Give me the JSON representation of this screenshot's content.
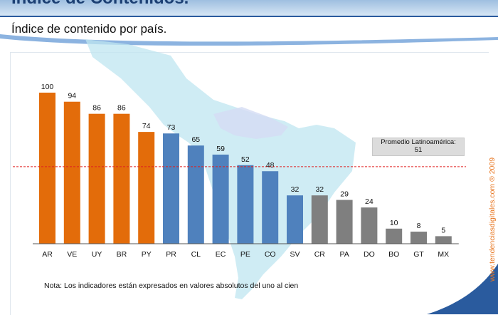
{
  "header": {
    "title": "Índice de Contenidos.",
    "subtitle": "Índice de contenido por país."
  },
  "note": "Nota: Los indicadores están expresados en valores absolutos del uno al cien",
  "copyright": "www.tendenciasdigitales.com ® 2009",
  "average": {
    "label": "Promedio Latinoamérica:",
    "value": "51"
  },
  "colors": {
    "orange": "#e36c0a",
    "blue": "#4f81bd",
    "gray": "#7f7f7f",
    "avg_line": "#e02020"
  },
  "chart_data": {
    "type": "bar",
    "categories": [
      "AR",
      "VE",
      "UY",
      "BR",
      "PY",
      "PR",
      "CL",
      "EC",
      "PE",
      "CO",
      "SV",
      "CR",
      "PA",
      "DO",
      "BO",
      "GT",
      "MX"
    ],
    "values": [
      100,
      94,
      86,
      86,
      74,
      73,
      65,
      59,
      52,
      48,
      32,
      32,
      29,
      24,
      10,
      8,
      5
    ],
    "bar_colors": [
      "orange",
      "orange",
      "orange",
      "orange",
      "orange",
      "blue",
      "blue",
      "blue",
      "blue",
      "blue",
      "blue",
      "gray",
      "gray",
      "gray",
      "gray",
      "gray",
      "gray"
    ],
    "average": 51,
    "ylim": [
      0,
      100
    ],
    "title": "Índice de contenido por país.",
    "xlabel": "",
    "ylabel": ""
  }
}
